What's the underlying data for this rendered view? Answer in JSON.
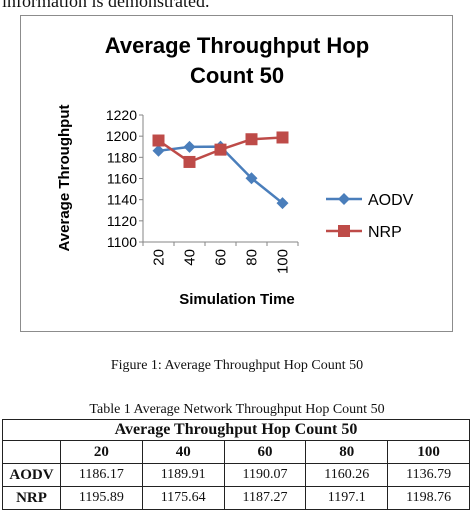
{
  "intro_text": "information is demonstrated.",
  "figure_caption": "Figure 1: Average Throughput Hop Count 50",
  "table": {
    "caption": "Table 1 Average Network Throughput Hop Count 50",
    "title": "Average Throughput Hop Count 50",
    "columns": [
      "20",
      "40",
      "60",
      "80",
      "100"
    ],
    "rows": [
      {
        "label": "AODV",
        "values": [
          "1186.17",
          "1189.91",
          "1190.07",
          "1160.26",
          "1136.79"
        ]
      },
      {
        "label": "NRP",
        "values": [
          "1195.89",
          "1175.64",
          "1187.27",
          "1197.1",
          "1198.76"
        ]
      }
    ]
  },
  "chart_data": {
    "type": "line",
    "title": "Average Throughput Hop Count 50",
    "xlabel": "Simulation Time",
    "ylabel": "Average Throughput",
    "categories": [
      "20",
      "40",
      "60",
      "80",
      "100"
    ],
    "ylim": [
      1100,
      1220
    ],
    "yticks": [
      "1100",
      "1120",
      "1140",
      "1160",
      "1180",
      "1200",
      "1220"
    ],
    "grid": false,
    "legend": "right",
    "series": [
      {
        "name": "AODV",
        "values": [
          1186.17,
          1189.91,
          1190.07,
          1160.26,
          1136.79
        ],
        "color": "#4a7ebb",
        "marker": "diamond"
      },
      {
        "name": "NRP",
        "values": [
          1195.89,
          1175.64,
          1187.27,
          1197.1,
          1198.76
        ],
        "color": "#be4b48",
        "marker": "square"
      }
    ]
  }
}
